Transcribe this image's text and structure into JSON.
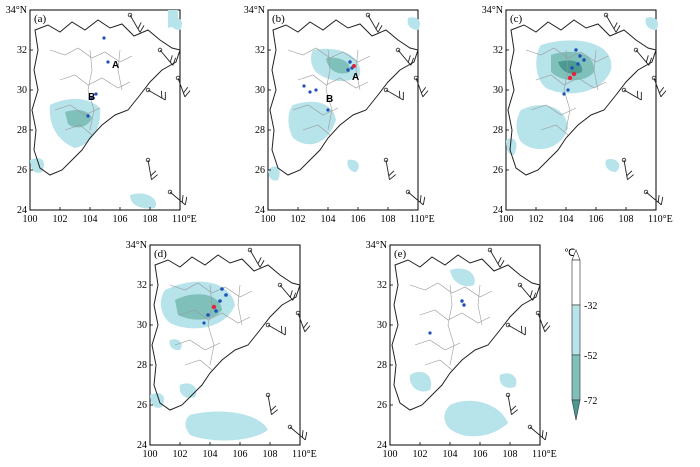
{
  "panels": [
    {
      "id": "a",
      "label": "(a)",
      "markers": [
        {
          "text": "A"
        },
        {
          "text": "B"
        }
      ]
    },
    {
      "id": "b",
      "label": "(b)",
      "markers": [
        {
          "text": "A"
        },
        {
          "text": "B"
        }
      ]
    },
    {
      "id": "c",
      "label": "(c)",
      "markers": []
    },
    {
      "id": "d",
      "label": "(d)",
      "markers": []
    },
    {
      "id": "e",
      "label": "(e)",
      "markers": []
    }
  ],
  "axes": {
    "x_ticks": [
      "100",
      "102",
      "104",
      "106",
      "108",
      "110°E"
    ],
    "y_ticks": [
      "24",
      "26",
      "28",
      "30",
      "32",
      "34°N"
    ],
    "x_range": [
      100,
      110
    ],
    "y_range": [
      24,
      34
    ]
  },
  "colorbar": {
    "unit": "℃",
    "levels": [
      "-32",
      "-52",
      "-72"
    ],
    "colors": [
      "#ffffff",
      "#b7e3ea",
      "#7fc0bb",
      "#4a9a92"
    ]
  },
  "colors": {
    "cloud_light": "#b7e3ea",
    "cloud_mid": "#7fc0bb",
    "cloud_dark": "#4a9a92",
    "lightning_neg": "#1f4fb8",
    "lightning_pos": "#e0263b",
    "border": "#222222",
    "county": "#999999"
  }
}
